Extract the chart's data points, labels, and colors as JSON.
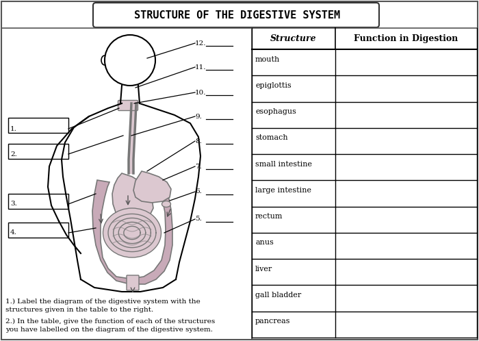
{
  "title": "STRUCTURE OF THE DIGESTIVE SYSTEM",
  "bg_color": "#ffffff",
  "table_structures": [
    "mouth",
    "epiglottis",
    "esophagus",
    "stomach",
    "small intestine",
    "large intestine",
    "rectum",
    "anus",
    "liver",
    "gall bladder",
    "pancreas"
  ],
  "col_header1": "Structure",
  "col_header2": "Function in Digestion",
  "left_labels": [
    "1.",
    "2.",
    "3.",
    "4."
  ],
  "right_labels": [
    "12.",
    "11.",
    "10.",
    "9.",
    "8.",
    "7.",
    "6.",
    "5."
  ],
  "instruction1": "1.) Label the diagram of the digestive system with the\nstructures given in the table to the right.",
  "instruction2": "2.) In the table, give the function of each of the structures\nyou have labelled on the diagram of the digestive system."
}
